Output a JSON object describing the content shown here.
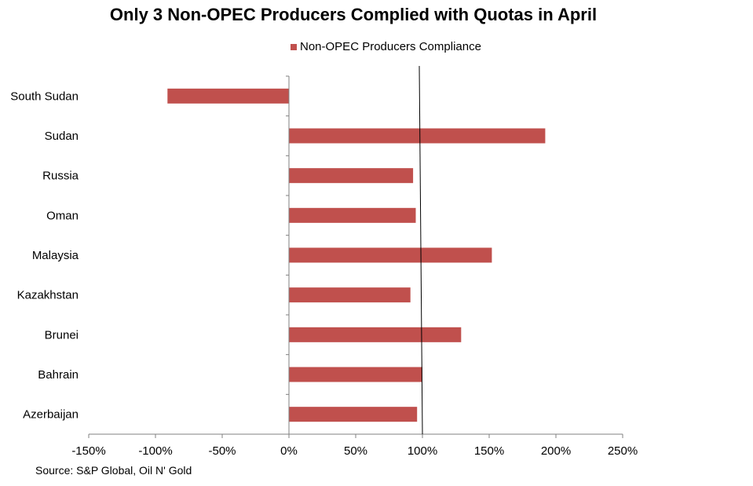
{
  "chart_data": {
    "type": "bar",
    "orientation": "horizontal",
    "title": "Only 3 Non-OPEC Producers Complied with Quotas in April",
    "legend": {
      "position": "top",
      "entries": [
        "Non-OPEC Producers Compliance"
      ]
    },
    "categories": [
      "South Sudan",
      "Sudan",
      "Russia",
      "Oman",
      "Malaysia",
      "Kazakhstan",
      "Brunei",
      "Bahrain",
      "Azerbaijan"
    ],
    "series": [
      {
        "name": "Non-OPEC Producers Compliance",
        "values": [
          -91,
          192,
          93,
          95,
          152,
          91,
          129,
          100,
          96
        ]
      }
    ],
    "xlim": [
      -150,
      250
    ],
    "xticks": [
      -150,
      -100,
      -50,
      0,
      50,
      100,
      150,
      200,
      250
    ],
    "xtick_labels": [
      "-150%",
      "-100%",
      "-50%",
      "0%",
      "50%",
      "100%",
      "150%",
      "200%",
      "250%"
    ],
    "reference_line": {
      "value": 100
    },
    "bar_color": "#c0504d",
    "grid": false
  },
  "source": "Source: S&P Global, Oil N' Gold"
}
